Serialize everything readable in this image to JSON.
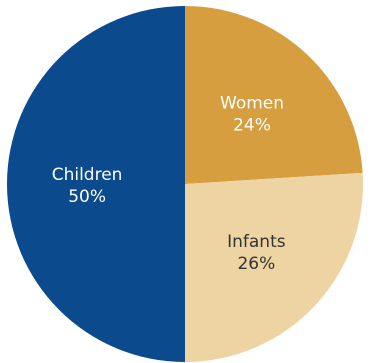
{
  "chart_data": {
    "type": "pie",
    "title": "",
    "slices": [
      {
        "label": "Women",
        "value": 24,
        "value_label": "24%",
        "color": "#D69E3E",
        "text_color": "#FFFFFF"
      },
      {
        "label": "Infants",
        "value": 26,
        "value_label": "26%",
        "color": "#EFD4A3",
        "text_color": "#333333"
      },
      {
        "label": "Children",
        "value": 50,
        "value_label": "50%",
        "color": "#0B4A8C",
        "text_color": "#FFFFFF"
      }
    ],
    "start_angle_deg": 0,
    "direction": "clockwise"
  }
}
